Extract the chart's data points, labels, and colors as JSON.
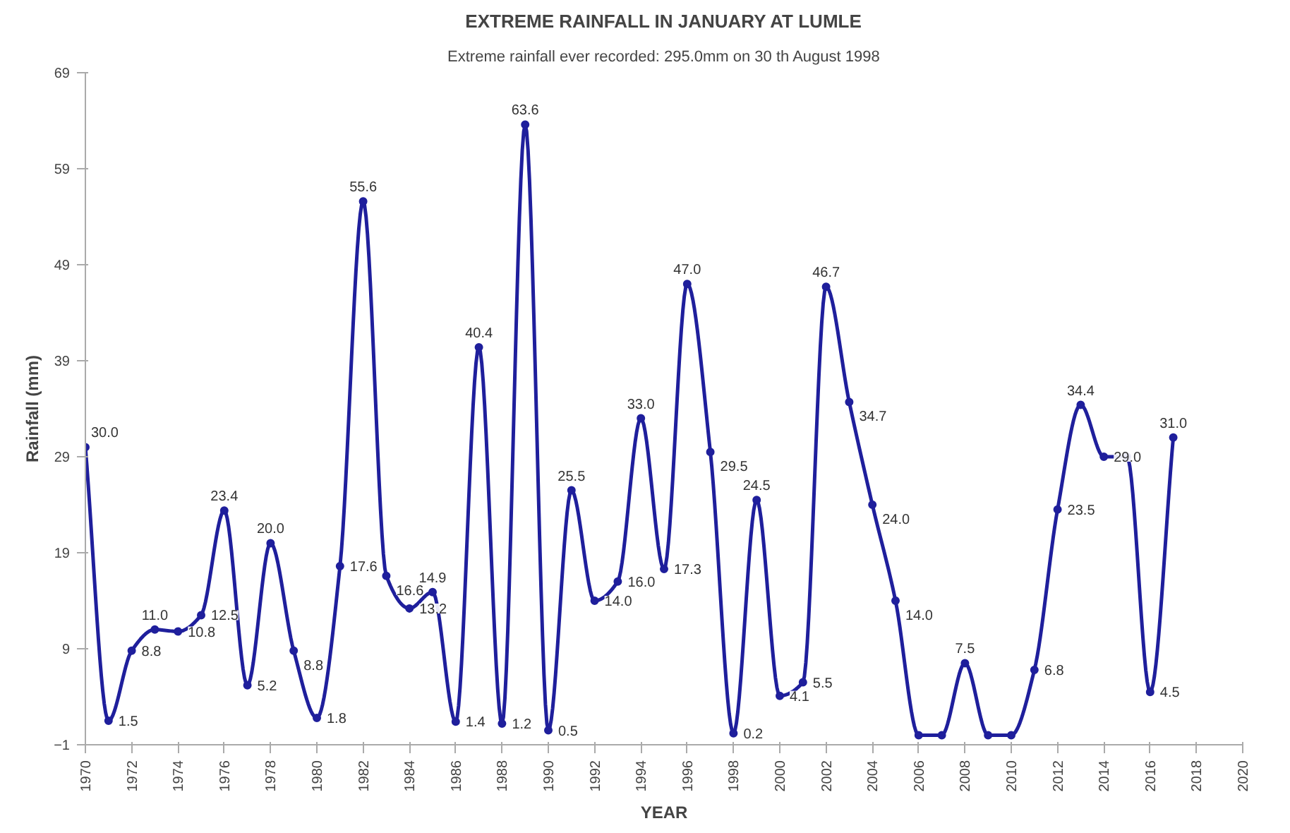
{
  "chart_data": {
    "type": "line",
    "title": "EXTREME RAINFALL IN JANUARY AT LUMLE",
    "subtitle": "Extreme rainfall ever recorded: 295.0mm on 30 th August 1998",
    "xlabel": "YEAR",
    "ylabel": "Rainfall (mm)",
    "x": [
      1970,
      1971,
      1972,
      1973,
      1974,
      1975,
      1976,
      1977,
      1978,
      1979,
      1980,
      1981,
      1982,
      1983,
      1984,
      1985,
      1986,
      1987,
      1988,
      1989,
      1990,
      1991,
      1992,
      1993,
      1994,
      1995,
      1996,
      1997,
      1998,
      1999,
      2000,
      2001,
      2002,
      2003,
      2004,
      2005,
      2006,
      2007,
      2008,
      2009,
      2010,
      2011,
      2012,
      2013,
      2014,
      2015,
      2016,
      2017
    ],
    "series": [
      {
        "color": "#1f1f9c",
        "values": [
          30.0,
          1.5,
          8.8,
          11.0,
          10.8,
          12.5,
          23.4,
          5.2,
          20.0,
          8.8,
          1.8,
          17.6,
          55.6,
          16.6,
          13.2,
          14.9,
          1.4,
          40.4,
          1.2,
          63.6,
          0.5,
          25.5,
          14.0,
          16.0,
          33.0,
          17.3,
          47.0,
          29.5,
          0.2,
          24.5,
          4.1,
          5.5,
          46.7,
          34.7,
          24.0,
          14.0,
          0,
          0,
          7.5,
          0,
          0,
          6.8,
          23.5,
          34.4,
          29.0,
          29.0,
          4.5,
          31.0
        ],
        "value_labels": [
          "30.0",
          "1.5",
          "8.8",
          "11.0",
          "10.8",
          "12.5",
          "23.4",
          "5.2",
          "20.0",
          "8.8",
          "1.8",
          "17.6",
          "55.6",
          "16.6",
          "13.2",
          "14.9",
          "1.4",
          "40.4",
          "1.2",
          "63.6",
          "0.5",
          "25.5",
          "14.0",
          "16.0",
          "33.0",
          "17.3",
          "47.0",
          "29.5",
          "0.2",
          "24.5",
          "4.1",
          "5.5",
          "46.7",
          "34.7",
          "24.0",
          "14.0",
          null,
          null,
          "7.5",
          null,
          null,
          "6.8",
          "23.5",
          "34.4",
          "29.0",
          null,
          "4.5",
          "31.0"
        ]
      }
    ],
    "xlim": [
      1970,
      2020
    ],
    "xticks": [
      1970,
      1972,
      1974,
      1976,
      1978,
      1980,
      1982,
      1984,
      1986,
      1988,
      1990,
      1992,
      1994,
      1996,
      1998,
      2000,
      2002,
      2004,
      2006,
      2008,
      2010,
      2012,
      2014,
      2016,
      2018,
      2020
    ],
    "ylim": [
      -1,
      69
    ],
    "yticks": [
      -1,
      9,
      19,
      29,
      39,
      49,
      59,
      69
    ],
    "grid": false,
    "marker": "circle",
    "line_style": "solid"
  }
}
